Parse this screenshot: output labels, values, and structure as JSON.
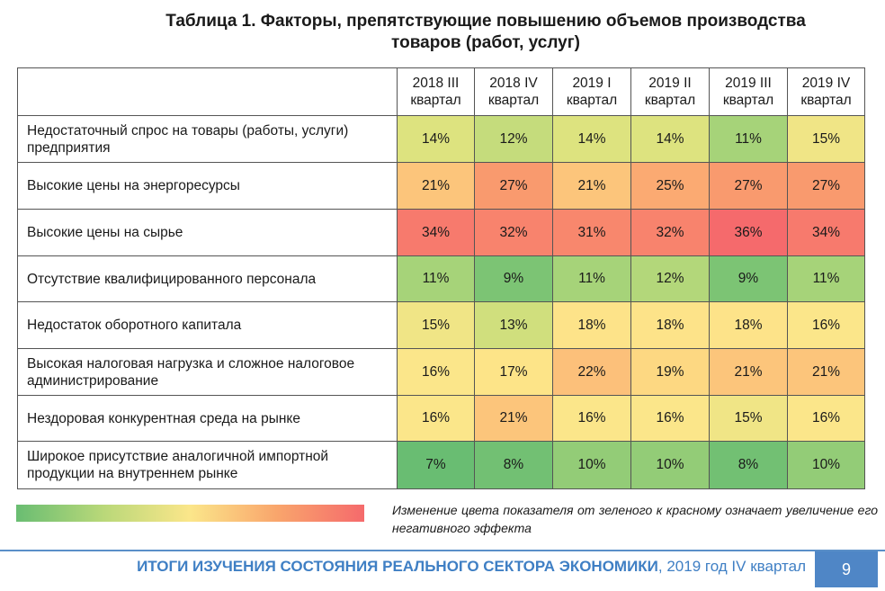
{
  "title": {
    "line1": "Таблица 1. Факторы, препятствующие повышению объемов производства",
    "line2": "товаров (работ, услуг)"
  },
  "table": {
    "columns": [
      {
        "year": "2018 III",
        "sub": "квартал"
      },
      {
        "year": "2018 IV",
        "sub": "квартал"
      },
      {
        "year": "2019 I",
        "sub": "квартал"
      },
      {
        "year": "2019 II",
        "sub": "квартал"
      },
      {
        "year": "2019 III",
        "sub": "квартал"
      },
      {
        "year": "2019 IV",
        "sub": "квартал"
      }
    ],
    "rows": [
      {
        "label": "Недостаточный спрос на товары (работы, услуги) предприятия",
        "values": [
          "14%",
          "12%",
          "14%",
          "14%",
          "11%",
          "15%"
        ],
        "colors": [
          "#dde37f",
          "#c5dc7c",
          "#dde37f",
          "#dde37f",
          "#a6d379",
          "#f0e586"
        ]
      },
      {
        "label": "Высокие цены на энергоресурсы",
        "values": [
          "21%",
          "27%",
          "21%",
          "25%",
          "27%",
          "27%"
        ],
        "colors": [
          "#fcc57b",
          "#f99a6e",
          "#fcc57b",
          "#fbaa72",
          "#f99a6e",
          "#f99a6e"
        ]
      },
      {
        "label": "Высокие цены на сырье",
        "values": [
          "34%",
          "32%",
          "31%",
          "32%",
          "36%",
          "34%"
        ],
        "colors": [
          "#f77a6d",
          "#f8836d",
          "#f8876d",
          "#f8836d",
          "#f56a6c",
          "#f77a6d"
        ]
      },
      {
        "label": "Отсутствие квалифицированного персонала",
        "values": [
          "11%",
          "9%",
          "11%",
          "12%",
          "9%",
          "11%"
        ],
        "colors": [
          "#a6d379",
          "#7cc474",
          "#a6d379",
          "#b3d77a",
          "#7cc474",
          "#a6d379"
        ]
      },
      {
        "label": "Недостаток оборотного капитала",
        "values": [
          "15%",
          "13%",
          "18%",
          "18%",
          "18%",
          "16%"
        ],
        "colors": [
          "#f0e586",
          "#d0df7d",
          "#fde389",
          "#fde389",
          "#fde389",
          "#fbe68a"
        ]
      },
      {
        "label": "Высокая налоговая нагрузка и сложное налоговое администрирование",
        "values": [
          "16%",
          "17%",
          "22%",
          "19%",
          "21%",
          "21%"
        ],
        "colors": [
          "#fbe68a",
          "#fde488",
          "#fcc07a",
          "#fdd882",
          "#fcc57b",
          "#fcc57b"
        ]
      },
      {
        "label": "Нездоровая конкурентная среда на рынке",
        "values": [
          "16%",
          "21%",
          "16%",
          "16%",
          "15%",
          "16%"
        ],
        "colors": [
          "#fbe68a",
          "#fcc57b",
          "#fbe68a",
          "#fbe68a",
          "#f0e586",
          "#fbe68a"
        ]
      },
      {
        "label": "Широкое присутствие аналогичной импортной продукции на внутреннем рынке",
        "values": [
          "7%",
          "8%",
          "10%",
          "10%",
          "8%",
          "10%"
        ],
        "colors": [
          "#69bd72",
          "#72c073",
          "#93cc77",
          "#93cc77",
          "#72c073",
          "#93cc77"
        ]
      }
    ]
  },
  "legend": {
    "text": "Изменение цвета показателя от зеленого к красному означает увеличение его негативного эффекта",
    "gradient_start": "#69bd72",
    "gradient_end": "#f56a6c"
  },
  "footer": {
    "bold": "ИТОГИ ИЗУЧЕНИЯ СОСТОЯНИЯ РЕАЛЬНОГО СЕКТОРА ЭКОНОМИКИ",
    "rest": ", 2019 год IV квартал",
    "page": "9",
    "accent": "#4f86c6"
  }
}
